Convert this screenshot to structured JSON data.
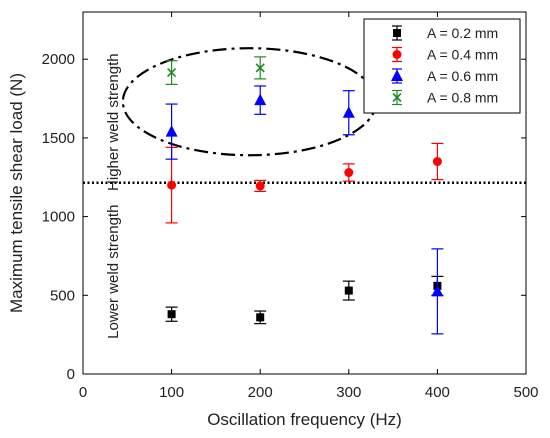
{
  "chart_data": {
    "type": "scatter",
    "xlabel": "Oscillation frequency (Hz)",
    "ylabel": "Maximum tensile shear load (N)",
    "xlim": [
      0,
      500
    ],
    "ylim": [
      0,
      2300
    ],
    "xticks": [
      0,
      100,
      200,
      300,
      400,
      500
    ],
    "yticks": [
      0,
      500,
      1000,
      1500,
      2000
    ],
    "grid": false,
    "legend_position": "top-right",
    "threshold_line": {
      "y": 1215,
      "style": "dotted"
    },
    "annotations": {
      "upper": "Higher weld strength",
      "lower": "Lower weld strength"
    },
    "highlight_ellipse": {
      "style": "dash-dot",
      "center": [
        188,
        1730
      ],
      "rx": 143,
      "ry": 340
    },
    "series": [
      {
        "name": "A = 0.2 mm",
        "marker": "square",
        "color": "#000000",
        "x": [
          100,
          200,
          300,
          400
        ],
        "y": [
          380,
          360,
          530,
          560
        ],
        "err_low": [
          45,
          40,
          60,
          60
        ],
        "err_high": [
          45,
          40,
          60,
          60
        ]
      },
      {
        "name": "A = 0.4 mm",
        "marker": "circle",
        "color": "#ff0000",
        "x": [
          100,
          200,
          300,
          400
        ],
        "y": [
          1200,
          1195,
          1280,
          1350
        ],
        "err_low": [
          240,
          35,
          55,
          115
        ],
        "err_high": [
          240,
          35,
          55,
          115
        ]
      },
      {
        "name": "A = 0.6 mm",
        "marker": "triangle",
        "color": "#0000ff",
        "x": [
          100,
          200,
          300,
          400
        ],
        "y": [
          1540,
          1740,
          1660,
          525
        ],
        "err_low": [
          175,
          90,
          140,
          270
        ],
        "err_high": [
          175,
          90,
          140,
          270
        ]
      },
      {
        "name": "A = 0.8 mm",
        "marker": "x",
        "color": "#228b22",
        "x": [
          100,
          200
        ],
        "y": [
          1915,
          1945
        ],
        "err_low": [
          75,
          70
        ],
        "err_high": [
          75,
          70
        ]
      }
    ]
  }
}
